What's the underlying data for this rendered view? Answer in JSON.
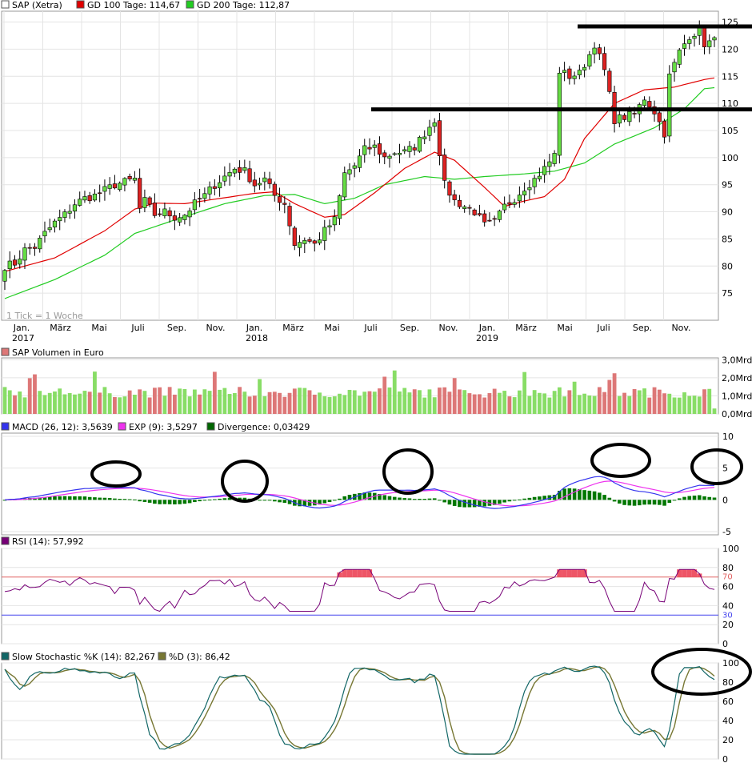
{
  "chart_data": [
    {
      "type": "candlestick",
      "title": "SAP (Xetra)",
      "note": "1 Tick = 1 Woche",
      "legend": [
        {
          "label": "SAP (Xetra)",
          "color": "#ffffff"
        },
        {
          "label": "GD 100 Tage: 114,67",
          "color": "#e00000"
        },
        {
          "label": "GD 200 Tage: 112,87",
          "color": "#22cc22"
        }
      ],
      "ylim": [
        70,
        127
      ],
      "yticks": [
        75,
        80,
        85,
        90,
        95,
        100,
        105,
        110,
        115,
        120,
        125
      ],
      "xtick_labels": [
        "Jan.",
        "März",
        "Mai",
        "Juli",
        "Sep.",
        "Nov.",
        "Jan.",
        "März",
        "Mai",
        "Juli",
        "Sep.",
        "Nov.",
        "Jan.",
        "März",
        "Mai",
        "Juli",
        "Sep.",
        "Nov."
      ],
      "year_labels": [
        "2017",
        "2018",
        "2019"
      ],
      "support_lines": [
        124.2,
        108.9
      ],
      "close_anchors": [
        [
          0,
          80
        ],
        [
          2,
          80.5
        ],
        [
          4,
          83
        ],
        [
          6,
          83.5
        ],
        [
          8,
          86
        ],
        [
          10,
          88
        ],
        [
          12,
          89.5
        ],
        [
          14,
          91.5
        ],
        [
          16,
          92.5
        ],
        [
          18,
          93
        ],
        [
          20,
          94
        ],
        [
          22,
          95
        ],
        [
          24,
          95.5
        ],
        [
          26,
          96
        ],
        [
          27,
          90.5
        ],
        [
          28,
          92
        ],
        [
          30,
          89.5
        ],
        [
          32,
          90
        ],
        [
          34,
          89
        ],
        [
          36,
          89.5
        ],
        [
          38,
          91.5
        ],
        [
          40,
          93
        ],
        [
          42,
          95
        ],
        [
          44,
          96.5
        ],
        [
          46,
          98
        ],
        [
          48,
          97.5
        ],
        [
          50,
          95
        ],
        [
          52,
          96
        ],
        [
          54,
          93
        ],
        [
          56,
          91.5
        ],
        [
          58,
          84
        ],
        [
          60,
          85
        ],
        [
          62,
          84
        ],
        [
          64,
          86.5
        ],
        [
          66,
          88.5
        ],
        [
          68,
          97
        ],
        [
          70,
          98.5
        ],
        [
          72,
          101.5
        ],
        [
          74,
          102
        ],
        [
          76,
          100
        ],
        [
          78,
          101
        ],
        [
          80,
          101
        ],
        [
          82,
          102
        ],
        [
          84,
          104.5
        ],
        [
          86,
          107
        ],
        [
          87,
          101
        ],
        [
          88,
          95
        ],
        [
          90,
          92
        ],
        [
          92,
          91
        ],
        [
          94,
          90
        ],
        [
          96,
          87.5
        ],
        [
          98,
          88
        ],
        [
          100,
          91
        ],
        [
          102,
          92.5
        ],
        [
          104,
          94.5
        ],
        [
          106,
          96
        ],
        [
          108,
          98
        ],
        [
          110,
          100.5
        ],
        [
          111,
          116
        ],
        [
          113,
          115
        ],
        [
          115,
          115.5
        ],
        [
          117,
          119
        ],
        [
          118,
          121
        ],
        [
          120,
          116
        ],
        [
          122,
          107
        ],
        [
          124,
          107.5
        ],
        [
          126,
          108
        ],
        [
          128,
          111
        ],
        [
          130,
          108.5
        ],
        [
          132,
          104.5
        ],
        [
          133,
          115
        ],
        [
          135,
          119.5
        ],
        [
          137,
          122.5
        ],
        [
          139,
          123.5
        ],
        [
          140,
          121
        ],
        [
          142,
          121.5
        ]
      ],
      "gd100_anchors": [
        [
          0,
          79
        ],
        [
          10,
          81.5
        ],
        [
          20,
          86.5
        ],
        [
          26,
          90.5
        ],
        [
          30,
          91.6
        ],
        [
          36,
          91.5
        ],
        [
          44,
          92.6
        ],
        [
          50,
          93.4
        ],
        [
          54,
          93.7
        ],
        [
          58,
          91.5
        ],
        [
          64,
          89
        ],
        [
          68,
          89.5
        ],
        [
          74,
          93.5
        ],
        [
          80,
          98
        ],
        [
          86,
          101
        ],
        [
          90,
          99.5
        ],
        [
          96,
          94.5
        ],
        [
          100,
          91
        ],
        [
          104,
          92
        ],
        [
          108,
          92.8
        ],
        [
          112,
          96
        ],
        [
          116,
          103.5
        ],
        [
          122,
          110
        ],
        [
          128,
          112.5
        ],
        [
          134,
          113
        ],
        [
          140,
          114.4
        ],
        [
          142,
          114.7
        ]
      ],
      "gd200_anchors": [
        [
          0,
          74
        ],
        [
          10,
          77.5
        ],
        [
          20,
          82
        ],
        [
          26,
          86
        ],
        [
          34,
          88.5
        ],
        [
          44,
          91.5
        ],
        [
          52,
          93
        ],
        [
          58,
          93.2
        ],
        [
          64,
          91.5
        ],
        [
          70,
          92.5
        ],
        [
          76,
          95
        ],
        [
          84,
          96.5
        ],
        [
          90,
          96
        ],
        [
          96,
          96.5
        ],
        [
          104,
          97
        ],
        [
          110,
          97.5
        ],
        [
          116,
          99
        ],
        [
          122,
          102.5
        ],
        [
          130,
          105.5
        ],
        [
          136,
          109
        ],
        [
          140,
          112.7
        ],
        [
          142,
          112.9
        ]
      ]
    },
    {
      "type": "bar",
      "title": "SAP Volumen in Euro",
      "yticks": [
        "0,0Mrd",
        "1,0Mrd",
        "2,0Mrd",
        "3,0Mrd"
      ],
      "yvalues": [
        0,
        1,
        2,
        3
      ],
      "up_color": "#88dd66",
      "down_color": "#dd7777"
    },
    {
      "type": "line",
      "title": "MACD",
      "legend": [
        {
          "label": "MACD (26, 12): 3,5639",
          "color": "#3333ee"
        },
        {
          "label": "EXP (9): 3,5297",
          "color": "#ee33ee"
        },
        {
          "label": "Divergence: 0,03429",
          "color": "#006600"
        }
      ],
      "ylim": [
        -5.5,
        10.5
      ],
      "yticks": [
        -5,
        0,
        5,
        10
      ]
    },
    {
      "type": "line",
      "title": "RSI",
      "legend": [
        {
          "label": "RSI (14): 57,992",
          "color": "#770077"
        }
      ],
      "ylim": [
        0,
        100
      ],
      "yticks": [
        0,
        20,
        40,
        60,
        80,
        100
      ],
      "upper_band": 70,
      "lower_band": 30,
      "upper_band_label": "70",
      "lower_band_label": "30"
    },
    {
      "type": "line",
      "title": "Slow Stochastic",
      "legend": [
        {
          "label": "Slow Stochastic %K (14): 82,267",
          "color": "#116666"
        },
        {
          "label": "%D (3): 86,42",
          "color": "#777733"
        }
      ],
      "ylim": [
        0,
        100
      ],
      "yticks": [
        0,
        20,
        40,
        60,
        80,
        100
      ]
    }
  ],
  "colors": {
    "grid": "#dddddd",
    "frame": "#999999",
    "candle_up": "#66dd44",
    "candle_down": "#dd2222"
  }
}
